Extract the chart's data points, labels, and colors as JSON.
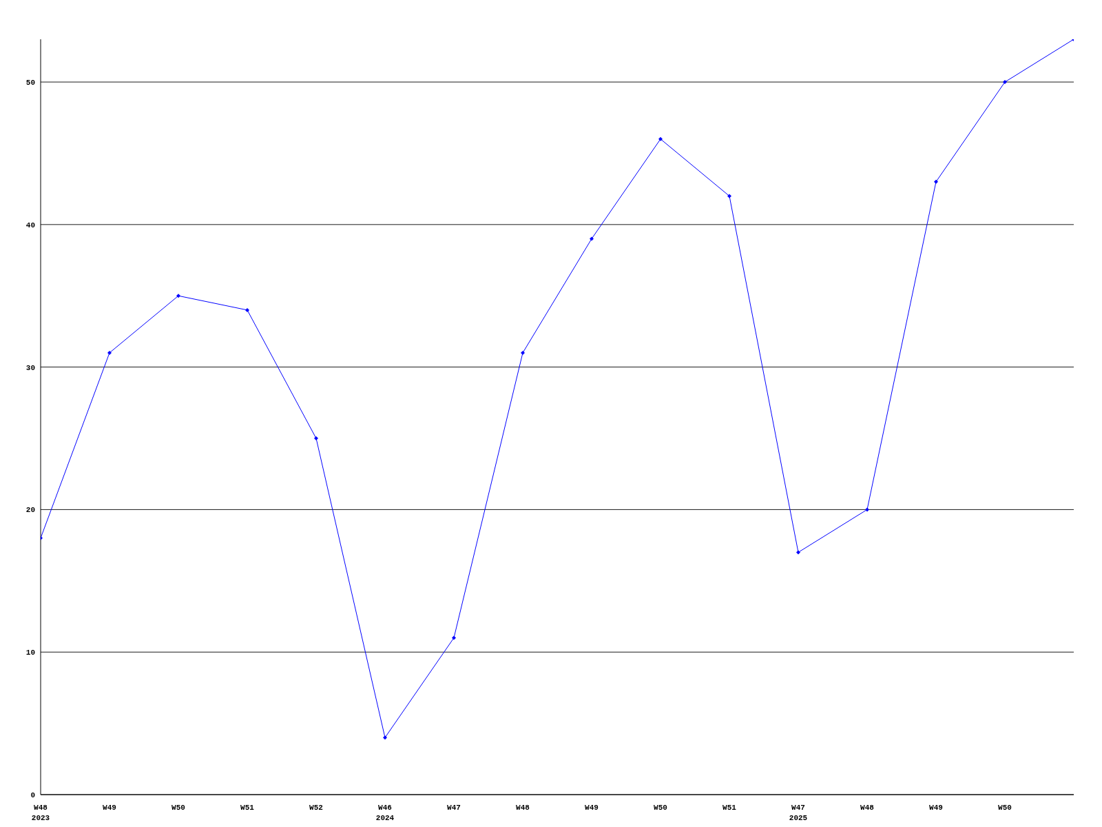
{
  "chart_data": {
    "type": "line",
    "categories": [
      "W48\n2023",
      "W49",
      "W50",
      "W51",
      "W52",
      "W46\n2024",
      "W47",
      "W48",
      "W49",
      "W50",
      "W51",
      "W47\n2025",
      "W48",
      "W49",
      "W50",
      null
    ],
    "series": [
      {
        "color": "#0000ff",
        "values": [
          18,
          31,
          35,
          34,
          25,
          4,
          11,
          31,
          39,
          46,
          42,
          17,
          20,
          43,
          50,
          53
        ]
      }
    ],
    "ylim": [
      0,
      53
    ],
    "yticks": [
      0,
      10,
      20,
      30,
      40,
      50
    ],
    "grid": "y",
    "marker": "diamond",
    "line_style": "solid",
    "legend": false
  }
}
